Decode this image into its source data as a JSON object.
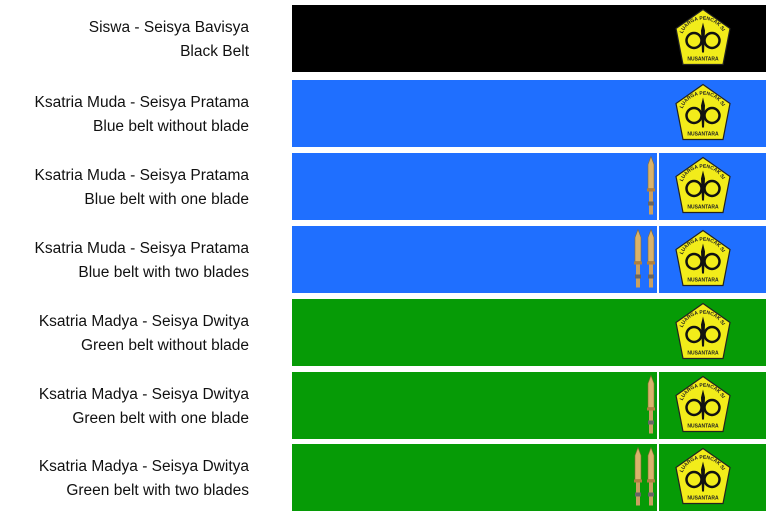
{
  "rows": [
    {
      "title": "Siswa - Seisya Bavisya",
      "subtitle": "Black Belt",
      "color": "#000000",
      "blades": 0
    },
    {
      "title": "Ksatria Muda - Seisya Pratama",
      "subtitle": "Blue belt without blade",
      "color": "#1f6fff",
      "blades": 0
    },
    {
      "title": "Ksatria Muda - Seisya Pratama",
      "subtitle": "Blue belt with one blade",
      "color": "#1f6fff",
      "blades": 1
    },
    {
      "title": "Ksatria Muda - Seisya Pratama",
      "subtitle": "Blue belt with two blades",
      "color": "#1f6fff",
      "blades": 2
    },
    {
      "title": "Ksatria Madya - Seisya Dwitya",
      "subtitle": "Green belt without blade",
      "color": "#069b06",
      "blades": 0
    },
    {
      "title": "Ksatria Madya - Seisya Dwitya",
      "subtitle": "Green belt with one blade",
      "color": "#069b06",
      "blades": 1
    },
    {
      "title": "Ksatria Madya - Seisya Dwitya",
      "subtitle": "Green belt with two blades",
      "color": "#069b06",
      "blades": 2
    }
  ],
  "logo": {
    "top": "KELUARGA PENCAK SILAT",
    "bottom": "NUSANTARA"
  }
}
